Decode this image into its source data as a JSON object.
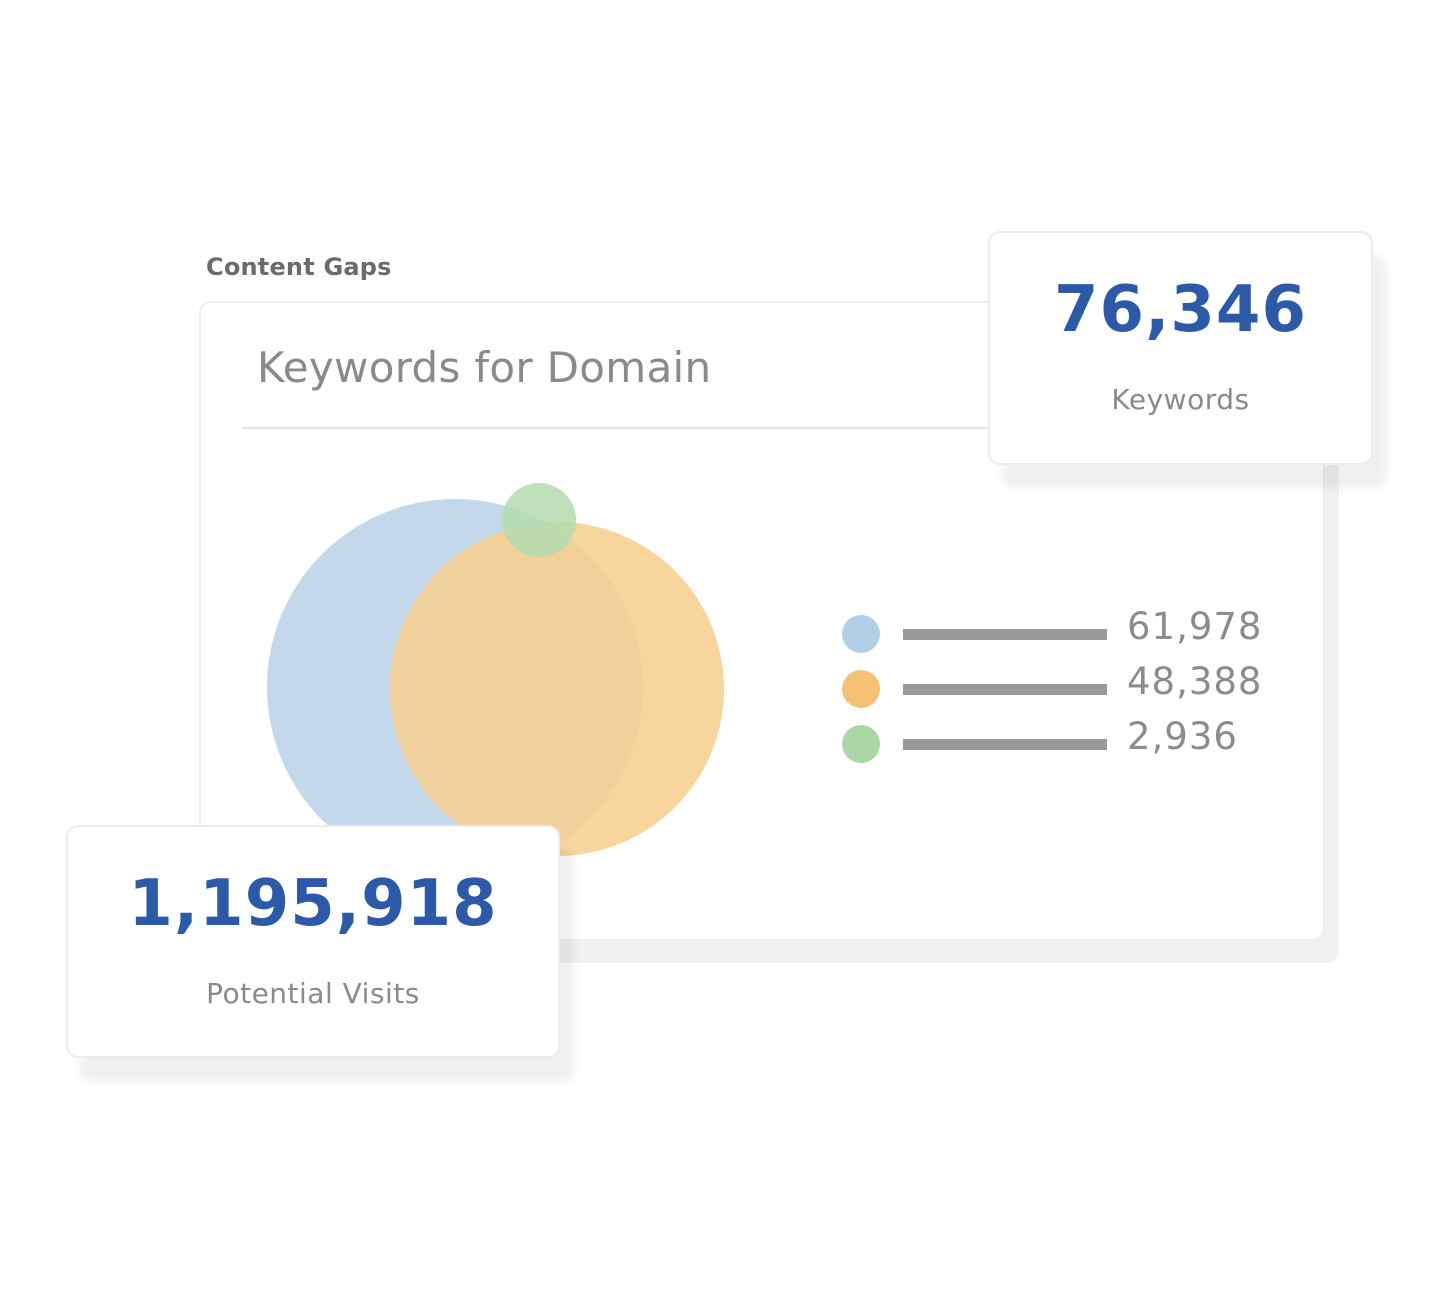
{
  "section_label": "Content Gaps",
  "card": {
    "title": "Keywords for Domain"
  },
  "legend": [
    {
      "value": "61,978",
      "color": "#b3cfe8"
    },
    {
      "value": "48,388",
      "color": "#f5c173"
    },
    {
      "value": "2,936",
      "color": "#a9d8a5"
    }
  ],
  "stats": {
    "keywords": {
      "value": "76,346",
      "label": "Keywords"
    },
    "visits": {
      "value": "1,195,918",
      "label": "Potential Visits"
    }
  },
  "colors": {
    "accent": "#2c5aa8",
    "venn_blue": "#c4d8ec",
    "venn_orange": "#f6cf8f",
    "venn_green": "#b3dcae"
  }
}
